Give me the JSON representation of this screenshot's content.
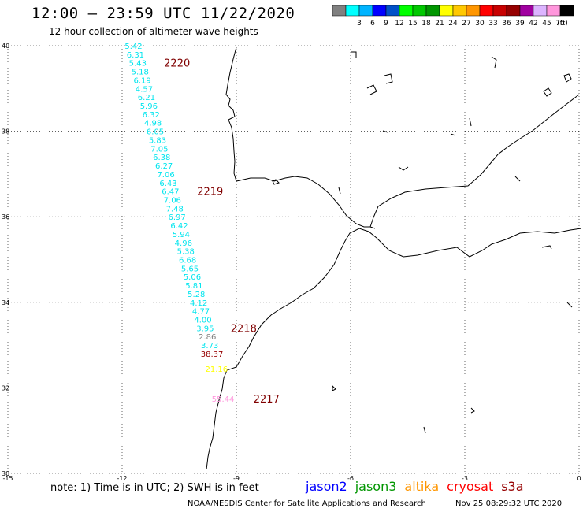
{
  "header": {
    "title": "12:00 — 23:59 UTC 11/22/2020",
    "subtitle": "12 hour collection of altimeter wave heights"
  },
  "legend": {
    "unit": "(ft)",
    "bins": [
      {
        "label": "",
        "color": "#808080"
      },
      {
        "label": "3",
        "color": "#00ffff"
      },
      {
        "label": "6",
        "color": "#00b4ff"
      },
      {
        "label": "9",
        "color": "#0000ff"
      },
      {
        "label": "12",
        "color": "#0050c8"
      },
      {
        "label": "15",
        "color": "#00ff00"
      },
      {
        "label": "18",
        "color": "#00c800"
      },
      {
        "label": "21",
        "color": "#009600"
      },
      {
        "label": "24",
        "color": "#ffff00"
      },
      {
        "label": "27",
        "color": "#ffc800"
      },
      {
        "label": "30",
        "color": "#ff9600"
      },
      {
        "label": "33",
        "color": "#ff0000"
      },
      {
        "label": "36",
        "color": "#c80000"
      },
      {
        "label": "39",
        "color": "#960000"
      },
      {
        "label": "42",
        "color": "#a000a0"
      },
      {
        "label": "45",
        "color": "#dcb4ff"
      },
      {
        "label": "70",
        "color": "#ff96dc"
      },
      {
        "label": "",
        "color": "#000000"
      }
    ]
  },
  "map": {
    "lon_range": [
      -15,
      0
    ],
    "lat_range": [
      30,
      40
    ],
    "lon_ticks": [
      "-15",
      "-12",
      "-9",
      "-6",
      "-3",
      "0"
    ],
    "lat_ticks": [
      "30",
      "32",
      "34",
      "36",
      "38",
      "40"
    ]
  },
  "track": {
    "color": "#00e5ee",
    "points": [
      {
        "lat": 40.0,
        "lon": -11.7,
        "v": "5.42"
      },
      {
        "lat": 39.8,
        "lon": -11.65,
        "v": "6.31"
      },
      {
        "lat": 39.6,
        "lon": -11.59,
        "v": "5.43"
      },
      {
        "lat": 39.4,
        "lon": -11.53,
        "v": "5.18"
      },
      {
        "lat": 39.2,
        "lon": -11.47,
        "v": "6.19"
      },
      {
        "lat": 39.0,
        "lon": -11.42,
        "v": "4.57"
      },
      {
        "lat": 38.8,
        "lon": -11.36,
        "v": "6.21"
      },
      {
        "lat": 38.6,
        "lon": -11.3,
        "v": "5.96"
      },
      {
        "lat": 38.4,
        "lon": -11.24,
        "v": "6.32"
      },
      {
        "lat": 38.2,
        "lon": -11.19,
        "v": "4.98"
      },
      {
        "lat": 38.0,
        "lon": -11.13,
        "v": "6.05"
      },
      {
        "lat": 37.8,
        "lon": -11.07,
        "v": "5.83"
      },
      {
        "lat": 37.6,
        "lon": -11.02,
        "v": "7.05"
      },
      {
        "lat": 37.4,
        "lon": -10.96,
        "v": "6.38"
      },
      {
        "lat": 37.2,
        "lon": -10.9,
        "v": "6.27"
      },
      {
        "lat": 37.0,
        "lon": -10.85,
        "v": "7.06"
      },
      {
        "lat": 36.8,
        "lon": -10.79,
        "v": "6.43"
      },
      {
        "lat": 36.6,
        "lon": -10.73,
        "v": "6.47"
      },
      {
        "lat": 36.4,
        "lon": -10.68,
        "v": "7.06"
      },
      {
        "lat": 36.2,
        "lon": -10.62,
        "v": "7.48"
      },
      {
        "lat": 36.0,
        "lon": -10.56,
        "v": "6.97"
      },
      {
        "lat": 35.8,
        "lon": -10.5,
        "v": "6.42"
      },
      {
        "lat": 35.6,
        "lon": -10.45,
        "v": "5.94"
      },
      {
        "lat": 35.4,
        "lon": -10.39,
        "v": "4.96"
      },
      {
        "lat": 35.2,
        "lon": -10.33,
        "v": "5.38"
      },
      {
        "lat": 35.0,
        "lon": -10.28,
        "v": "6.68"
      },
      {
        "lat": 34.8,
        "lon": -10.22,
        "v": "5.65"
      },
      {
        "lat": 34.6,
        "lon": -10.16,
        "v": "5.06"
      },
      {
        "lat": 34.4,
        "lon": -10.11,
        "v": "5.81"
      },
      {
        "lat": 34.2,
        "lon": -10.05,
        "v": "5.28"
      },
      {
        "lat": 34.0,
        "lon": -9.99,
        "v": "4.12"
      },
      {
        "lat": 33.8,
        "lon": -9.93,
        "v": "4.77"
      },
      {
        "lat": 33.6,
        "lon": -9.88,
        "v": "4.00"
      },
      {
        "lat": 33.4,
        "lon": -9.82,
        "v": "3.95"
      },
      {
        "lat": 33.2,
        "lon": -9.76,
        "v": "2.86",
        "color": "#808080"
      },
      {
        "lat": 33.0,
        "lon": -9.7,
        "v": "3.73"
      },
      {
        "lat": 32.8,
        "lon": -9.64,
        "v": "38.37",
        "color": "#960000"
      },
      {
        "lat": 32.45,
        "lon": -9.52,
        "v": "21.16",
        "color": "#ffff00"
      },
      {
        "lat": 31.75,
        "lon": -9.35,
        "v": "55.44",
        "color": "#ff96dc"
      }
    ]
  },
  "times": [
    {
      "lat": 39.6,
      "lon": -10.9,
      "label": "2220"
    },
    {
      "lat": 36.6,
      "lon": -10.03,
      "label": "2219"
    },
    {
      "lat": 33.4,
      "lon": -9.15,
      "label": "2218"
    },
    {
      "lat": 31.75,
      "lon": -8.55,
      "label": "2217"
    }
  ],
  "note": "note: 1) Time is in UTC; 2) SWH is in feet",
  "satellites": [
    {
      "name": "jason2",
      "color": "#0000ff"
    },
    {
      "name": "jason3",
      "color": "#009600"
    },
    {
      "name": "altika",
      "color": "#ff9600"
    },
    {
      "name": "cryosat",
      "color": "#ff0000"
    },
    {
      "name": "s3a",
      "color": "#960000"
    }
  ],
  "footer": {
    "credit": "NOAA/NESDIS Center for Satellite Applications and Research",
    "timestamp": "Nov 25 08:29:32 UTC 2020"
  }
}
